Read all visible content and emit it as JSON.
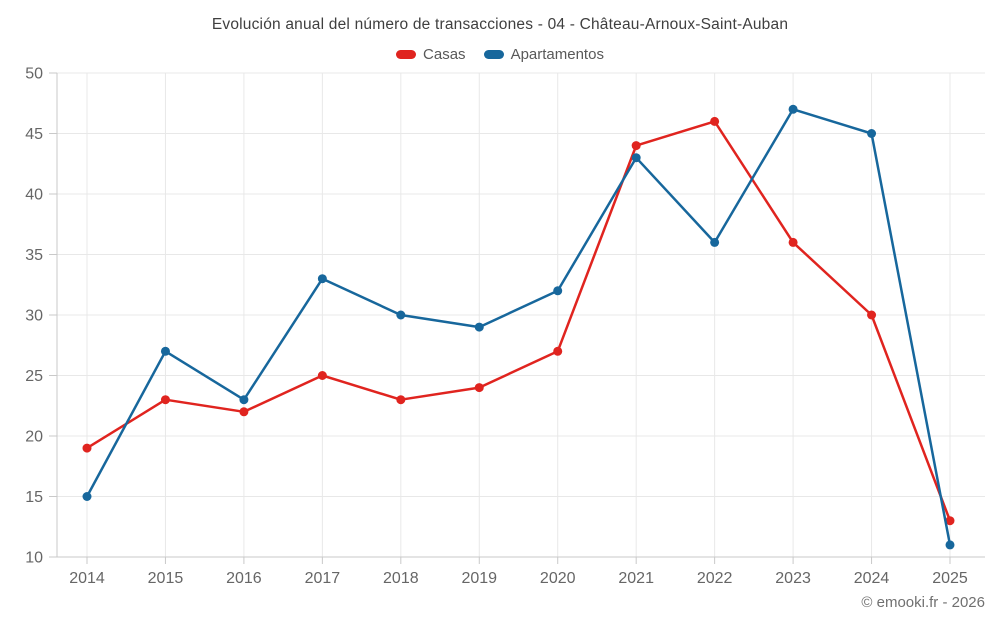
{
  "title": "Evolución anual del número de transacciones - 04 - Château-Arnoux-Saint-Auban",
  "footer": {
    "copyright": "© emooki.fr - 2026"
  },
  "chart_data": {
    "type": "line",
    "title": "Evolución anual del número de transacciones - 04 - Château-Arnoux-Saint-Auban",
    "categories": [
      "2014",
      "2015",
      "2016",
      "2017",
      "2018",
      "2019",
      "2020",
      "2021",
      "2022",
      "2023",
      "2024",
      "2025"
    ],
    "series": [
      {
        "name": "Casas",
        "color": "#e0241f",
        "values": [
          19,
          23,
          22,
          25,
          23,
          24,
          27,
          44,
          46,
          36,
          30,
          13
        ]
      },
      {
        "name": "Apartamentos",
        "color": "#17679c",
        "values": [
          15,
          27,
          23,
          33,
          30,
          29,
          32,
          43,
          36,
          47,
          45,
          11
        ]
      }
    ],
    "xlabel": "",
    "ylabel": "",
    "ylim": [
      10,
      50
    ],
    "ytick_step": 5,
    "grid": true,
    "legend_position": "top",
    "marker": "circle"
  },
  "style": {
    "grid_color": "#e8e8e8",
    "axis_color": "#c9c9c9",
    "tick_label_color": "#666666"
  }
}
